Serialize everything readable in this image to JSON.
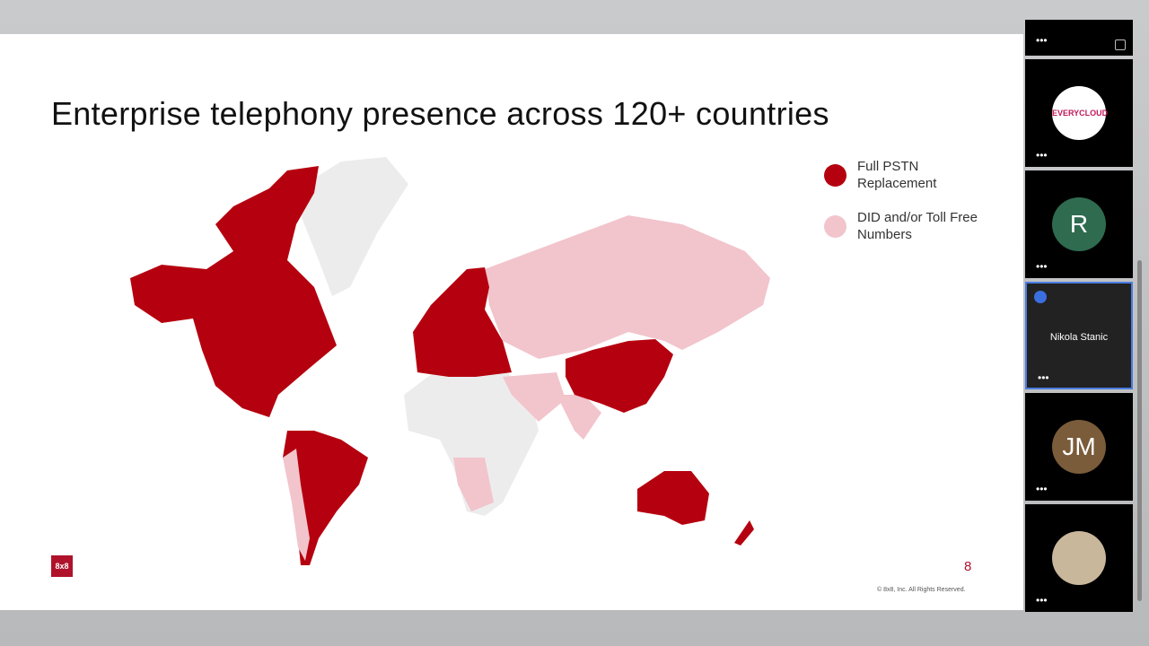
{
  "slide": {
    "title": "Enterprise telephony presence across 120+ countries",
    "legend": [
      {
        "label": "Full PSTN Replacement"
      },
      {
        "label": "DID and/or Toll Free Numbers"
      }
    ],
    "logo": "8x8",
    "page_number": "8",
    "copyright": "© 8x8, Inc. All Rights Reserved."
  },
  "participants": [
    {
      "avatar": "EVERYCLOUD"
    },
    {
      "avatar": "R"
    },
    {
      "name": "Nikola Stanic"
    },
    {
      "avatar": "JM"
    }
  ]
}
